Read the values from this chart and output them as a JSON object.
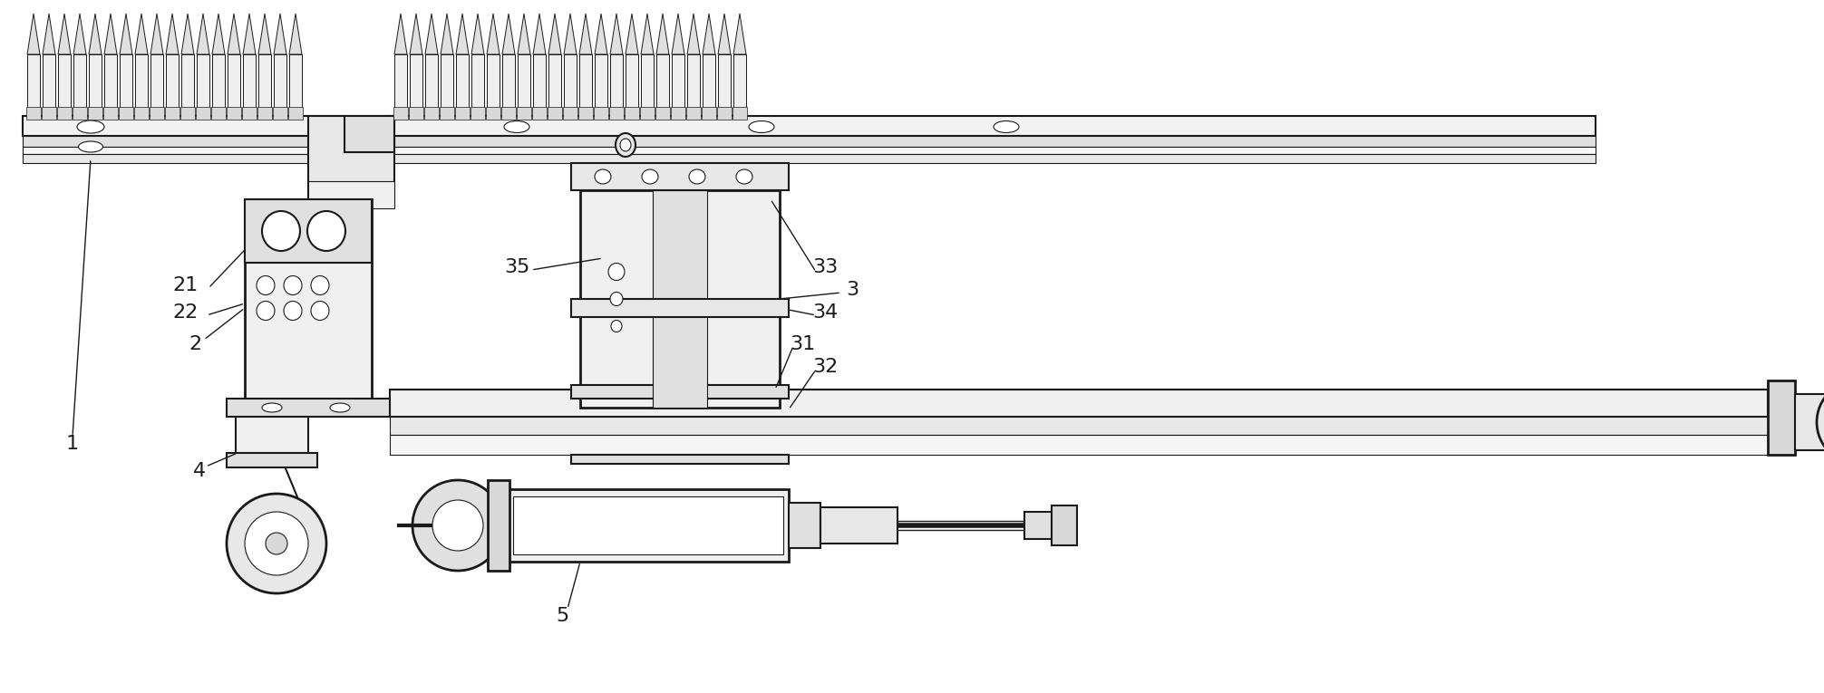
{
  "bg_color": "#ffffff",
  "line_color": "#1a1a1a",
  "fig_width": 20.12,
  "fig_height": 7.65,
  "lw_main": 1.5,
  "lw_thin": 0.8,
  "lw_thick": 2.0
}
